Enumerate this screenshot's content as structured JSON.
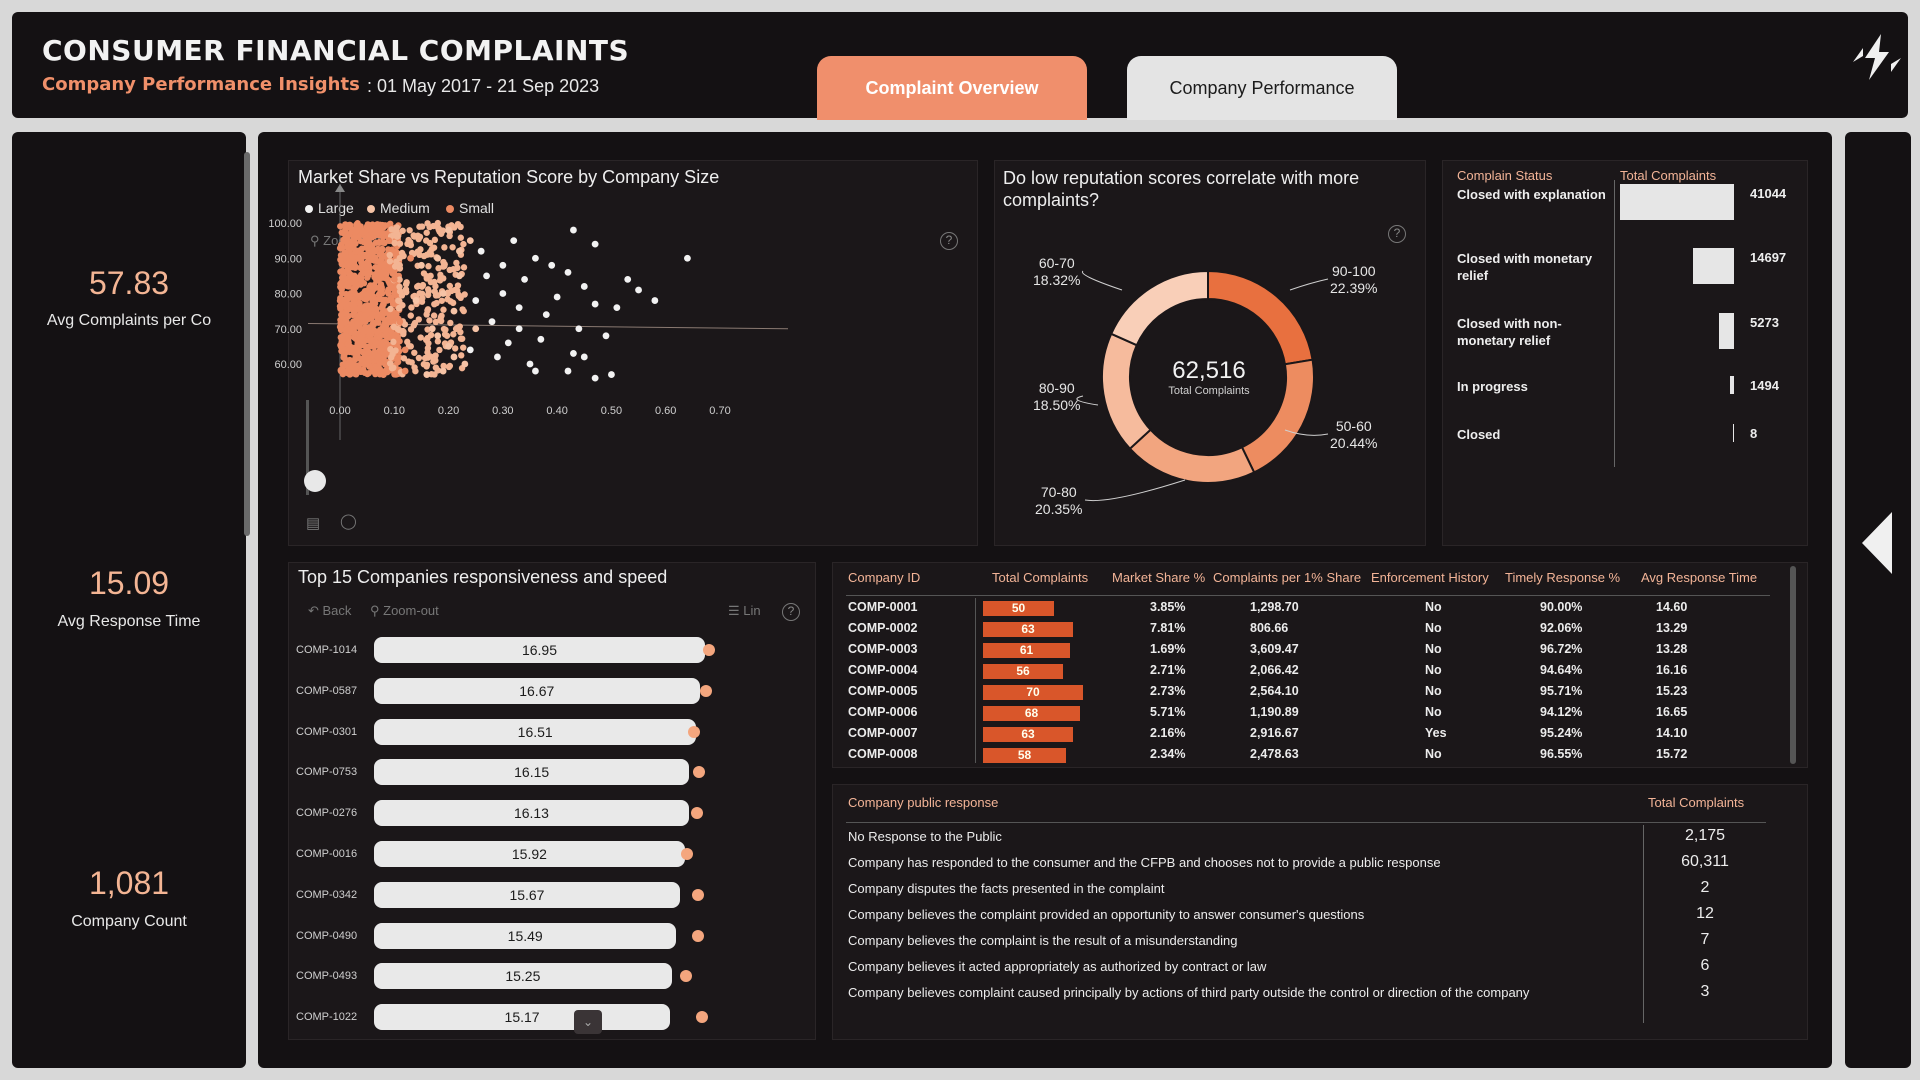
{
  "header": {
    "title": "CONSUMER FINANCIAL COMPLAINTS",
    "subtitle": "Company Performance Insights",
    "date_range": ": 01 May 2017 - 21 Sep 2023",
    "tabs": [
      "Complaint Overview",
      "Company Performance"
    ]
  },
  "kpis": [
    {
      "value": "57.83",
      "label": "Avg Complaints per Co"
    },
    {
      "value": "15.09",
      "label": "Avg Response Time"
    },
    {
      "value": "1,081",
      "label": "Company Count"
    }
  ],
  "scatter": {
    "title": "Market Share vs Reputation Score by Company Size",
    "legend": [
      "Large",
      "Medium",
      "Small"
    ],
    "zoom_out": "Zoom Out",
    "help": "?",
    "colors": {
      "large": "#f2f2f2",
      "medium": "#f6c3a6",
      "small": "#ec8a62"
    }
  },
  "donut": {
    "title": "Do low reputation scores correlate with more complaints?",
    "total": "62,516",
    "total_label": "Total Complaints",
    "help": "?"
  },
  "status": {
    "col_status": "Complain Status",
    "col_total": "Total Complaints"
  },
  "bars": {
    "title": "Top 15 Companies responsiveness and speed",
    "back": "Back",
    "zoom_out": "Zoom-out",
    "lin": "Lin",
    "help": "?"
  },
  "company_table": {
    "headers": [
      "Company ID",
      "Total Complaints",
      "Market Share %",
      "Complaints per 1% Share",
      "Enforcement History",
      "Timely Response %",
      "Avg Response Time"
    ],
    "rows": [
      [
        "COMP-0001",
        "50",
        "3.85%",
        "1,298.70",
        "No",
        "90.00%",
        "14.60"
      ],
      [
        "COMP-0002",
        "63",
        "7.81%",
        "806.66",
        "No",
        "92.06%",
        "13.29"
      ],
      [
        "COMP-0003",
        "61",
        "1.69%",
        "3,609.47",
        "No",
        "96.72%",
        "13.28"
      ],
      [
        "COMP-0004",
        "56",
        "2.71%",
        "2,066.42",
        "No",
        "94.64%",
        "16.16"
      ],
      [
        "COMP-0005",
        "70",
        "2.73%",
        "2,564.10",
        "No",
        "95.71%",
        "15.23"
      ],
      [
        "COMP-0006",
        "68",
        "5.71%",
        "1,190.89",
        "No",
        "94.12%",
        "16.65"
      ],
      [
        "COMP-0007",
        "63",
        "2.16%",
        "2,916.67",
        "Yes",
        "95.24%",
        "14.10"
      ],
      [
        "COMP-0008",
        "58",
        "2.34%",
        "2,478.63",
        "No",
        "96.55%",
        "15.72"
      ]
    ]
  },
  "response_table": {
    "col_response": "Company public response",
    "col_total": "Total Complaints",
    "rows": [
      {
        "text": "No Response to the Public",
        "value": "2,175"
      },
      {
        "text": "Company has responded to the consumer and the CFPB and chooses not to provide a public response",
        "value": "60,311"
      },
      {
        "text": "Company disputes the facts presented in the complaint",
        "value": "2"
      },
      {
        "text": "Company believes the complaint provided an opportunity to answer consumer's questions",
        "value": "12"
      },
      {
        "text": "Company believes the complaint is the result of a misunderstanding",
        "value": "7"
      },
      {
        "text": "Company believes it acted appropriately as authorized by contract or law",
        "value": "6"
      },
      {
        "text": "Company believes complaint caused principally by actions of third party outside the control or direction of the company",
        "value": "3"
      }
    ]
  },
  "chart_data": [
    {
      "type": "scatter",
      "title": "Market Share vs Reputation Score by Company Size",
      "legend": [
        "Large",
        "Medium",
        "Small"
      ],
      "x_ticks": [
        "0.00",
        "0.10",
        "0.20",
        "0.30",
        "0.40",
        "0.50",
        "0.60",
        "0.70"
      ],
      "y_ticks": [
        "100.00",
        "90.00",
        "80.00",
        "70.00",
        "60.00"
      ],
      "xlim": [
        0,
        0.75
      ],
      "ylim": [
        55,
        100
      ],
      "series": [
        {
          "name": "Large",
          "points": [
            [
              0.43,
              98
            ],
            [
              0.47,
              94
            ],
            [
              0.64,
              90
            ],
            [
              0.42,
              86
            ],
            [
              0.53,
              84
            ],
            [
              0.45,
              82
            ],
            [
              0.55,
              81
            ],
            [
              0.58,
              78
            ],
            [
              0.47,
              77
            ],
            [
              0.51,
              76
            ],
            [
              0.44,
              70
            ],
            [
              0.49,
              68
            ],
            [
              0.37,
              67
            ],
            [
              0.43,
              63
            ],
            [
              0.45,
              62
            ],
            [
              0.36,
              58
            ],
            [
              0.42,
              58
            ],
            [
              0.5,
              57
            ],
            [
              0.47,
              56
            ],
            [
              0.32,
              95
            ],
            [
              0.36,
              90
            ],
            [
              0.39,
              88
            ],
            [
              0.34,
              84
            ],
            [
              0.3,
              80
            ],
            [
              0.33,
              76
            ],
            [
              0.28,
              72
            ],
            [
              0.31,
              66
            ],
            [
              0.29,
              62
            ],
            [
              0.35,
              60
            ],
            [
              0.26,
              92
            ],
            [
              0.27,
              85
            ],
            [
              0.25,
              78
            ],
            [
              0.33,
              70
            ],
            [
              0.38,
              74
            ],
            [
              0.4,
              79
            ],
            [
              0.24,
              64
            ],
            [
              0.3,
              88
            ]
          ]
        },
        {
          "name": "Medium",
          "points": [
            [
              0.2,
              98
            ],
            [
              0.18,
              90
            ],
            [
              0.22,
              85
            ],
            [
              0.19,
              80
            ],
            [
              0.21,
              75
            ],
            [
              0.17,
              70
            ],
            [
              0.2,
              65
            ],
            [
              0.23,
              60
            ],
            [
              0.16,
              57
            ],
            [
              0.24,
              95
            ],
            [
              0.15,
              88
            ],
            [
              0.22,
              92
            ],
            [
              0.18,
              68
            ],
            [
              0.21,
              62
            ],
            [
              0.25,
              70
            ],
            [
              0.14,
              78
            ],
            [
              0.19,
              58
            ]
          ]
        },
        {
          "name": "Small",
          "points": [
            [
              0.01,
              98
            ],
            [
              0.03,
              92
            ],
            [
              0.05,
              86
            ],
            [
              0.02,
              80
            ],
            [
              0.06,
              74
            ],
            [
              0.04,
              68
            ],
            [
              0.07,
              62
            ],
            [
              0.08,
              57
            ],
            [
              0.09,
              95
            ],
            [
              0.1,
              84
            ],
            [
              0.11,
              72
            ],
            [
              0.12,
              64
            ],
            [
              0.13,
              90
            ],
            [
              0.12,
              58
            ],
            [
              0.02,
              60
            ],
            [
              0.05,
              99
            ],
            [
              0.08,
              77
            ]
          ]
        }
      ]
    },
    {
      "type": "pie",
      "title": "Do low reputation scores correlate with more complaints?",
      "categories": [
        "90-100",
        "50-60",
        "70-80",
        "80-90",
        "60-70"
      ],
      "values": [
        22.39,
        20.44,
        20.35,
        18.5,
        18.32
      ],
      "labels": [
        "22.39%",
        "20.44%",
        "20.35%",
        "18.50%",
        "18.32%"
      ],
      "total": "62,516"
    },
    {
      "type": "bar",
      "title": "Complain Status",
      "categories": [
        "Closed with explanation",
        "Closed with monetary relief",
        "Closed with non-monetary relief",
        "In progress",
        "Closed"
      ],
      "values": [
        41044,
        14697,
        5273,
        1494,
        8
      ]
    },
    {
      "type": "bar",
      "title": "Top 15 Companies responsiveness and speed",
      "categories": [
        "COMP-1014",
        "COMP-0587",
        "COMP-0301",
        "COMP-0753",
        "COMP-0276",
        "COMP-0016",
        "COMP-0342",
        "COMP-0490",
        "COMP-0493",
        "COMP-1022"
      ],
      "values": [
        16.95,
        16.67,
        16.51,
        16.15,
        16.13,
        15.92,
        15.67,
        15.49,
        15.25,
        15.17
      ],
      "labels": [
        "16.95",
        "16.67",
        "16.51",
        "16.15",
        "16.13",
        "15.92",
        "15.67",
        "15.49",
        "15.25",
        "15.17"
      ]
    }
  ]
}
